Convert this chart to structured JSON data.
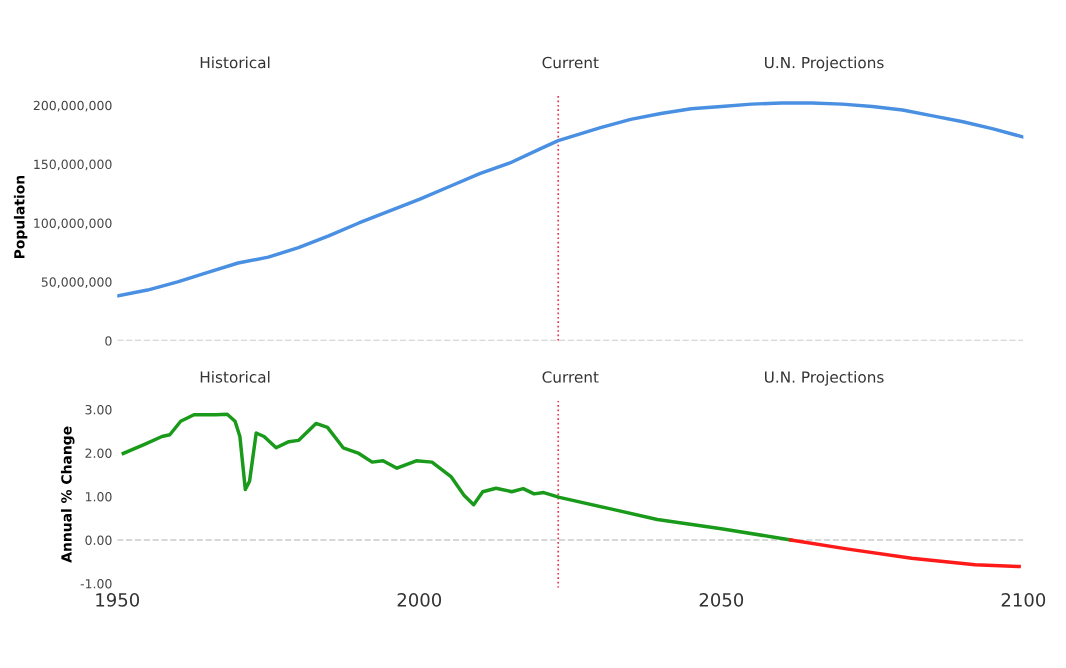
{
  "chart_data": [
    {
      "type": "line",
      "ylabel": "Population",
      "annotations": [
        "Historical",
        "Current",
        "U.N. Projections"
      ],
      "xlim": [
        1950,
        2100
      ],
      "ylim": [
        0,
        210000000
      ],
      "yticks": [
        {
          "value": 0,
          "label": "0"
        },
        {
          "value": 50000000,
          "label": "50,000,000"
        },
        {
          "value": 100000000,
          "label": "100,000,000"
        },
        {
          "value": 150000000,
          "label": "150,000,000"
        },
        {
          "value": 200000000,
          "label": "200,000,000"
        }
      ],
      "tick_labels": "y",
      "grid": false,
      "line_style": "solid",
      "marker": "none",
      "ref_lines": [
        {
          "axis": "x",
          "value": 2023,
          "label": null,
          "color": "#e8344e",
          "line_style": "dotted"
        },
        {
          "axis": "y",
          "value": 0,
          "label": null,
          "color": "#cccccc",
          "line_style": "dashed"
        }
      ],
      "series": [
        {
          "color": "#4a90e2",
          "x": [
            1950,
            1955,
            1960,
            1965,
            1970,
            1975,
            1980,
            1985,
            1990,
            1995,
            2000,
            2005,
            2010,
            2015,
            2020,
            2023,
            2030,
            2035,
            2040,
            2045,
            2050,
            2055,
            2060,
            2065,
            2070,
            2075,
            2080,
            2085,
            2090,
            2095,
            2100
          ],
          "values": [
            38000000,
            43000000,
            50000000,
            58000000,
            66000000,
            71000000,
            79000000,
            89000000,
            100000000,
            110000000,
            120000000,
            131000000,
            142000000,
            151000000,
            163000000,
            170000000,
            181000000,
            188000000,
            193000000,
            197000000,
            199000000,
            201000000,
            202000000,
            202000000,
            201000000,
            199000000,
            196000000,
            191000000,
            186000000,
            180000000,
            173000000
          ]
        }
      ]
    },
    {
      "type": "line",
      "ylabel": "Annual % Change",
      "annotations": [
        "Historical",
        "Current",
        "U.N. Projections"
      ],
      "xlim": [
        1950,
        2100
      ],
      "ylim": [
        -1.1,
        3.2
      ],
      "xticks": [
        1950,
        2000,
        2050,
        2100
      ],
      "yticks": [
        {
          "value": -1,
          "label": "-1.00"
        },
        {
          "value": 0,
          "label": "0.00"
        },
        {
          "value": 1,
          "label": "1.00"
        },
        {
          "value": 2,
          "label": "2.00"
        },
        {
          "value": 3,
          "label": "3.00"
        }
      ],
      "grid": false,
      "line_style": "solid",
      "marker": "none",
      "ref_lines": [
        {
          "axis": "x",
          "value": 2023,
          "label": null,
          "color": "#e8344e",
          "line_style": "dotted"
        },
        {
          "axis": "y",
          "value": 0,
          "label": null,
          "color": "#cccccc",
          "line_style": "dashed"
        }
      ],
      "series": [
        {
          "color": "#1a9a1a",
          "x": [
            1951,
            1954.7,
            1957.4,
            1958.7,
            1960.5,
            1962.7,
            1966.3,
            1968.2,
            1969.5,
            1970.3,
            1971.2,
            1971.9,
            1973,
            1974.3,
            1976.3,
            1978.4,
            1980,
            1982.9,
            1984.8,
            1987.4,
            1990,
            1992.2,
            1994,
            1996.3,
            1999.5,
            2002.1,
            2005.3,
            2007.4,
            2009,
            2010.5,
            2012.7,
            2015.3,
            2017.2,
            2019,
            2020.6,
            2023.2,
            2031.5,
            2039.4,
            2050,
            2061.5
          ],
          "values": [
            1.99,
            2.21,
            2.38,
            2.42,
            2.73,
            2.88,
            2.88,
            2.89,
            2.73,
            2.38,
            1.16,
            1.35,
            2.46,
            2.38,
            2.12,
            2.26,
            2.29,
            2.68,
            2.59,
            2.12,
            1.99,
            1.79,
            1.82,
            1.65,
            1.82,
            1.79,
            1.45,
            1.03,
            0.81,
            1.11,
            1.19,
            1.11,
            1.18,
            1.06,
            1.09,
            0.98,
            0.72,
            0.47,
            0.26,
            0.0
          ]
        },
        {
          "color": "#ff1a1a",
          "x": [
            2061.5,
            2071,
            2081.5,
            2092,
            2099.3
          ],
          "values": [
            0.0,
            -0.21,
            -0.42,
            -0.57,
            -0.61
          ]
        }
      ]
    }
  ]
}
